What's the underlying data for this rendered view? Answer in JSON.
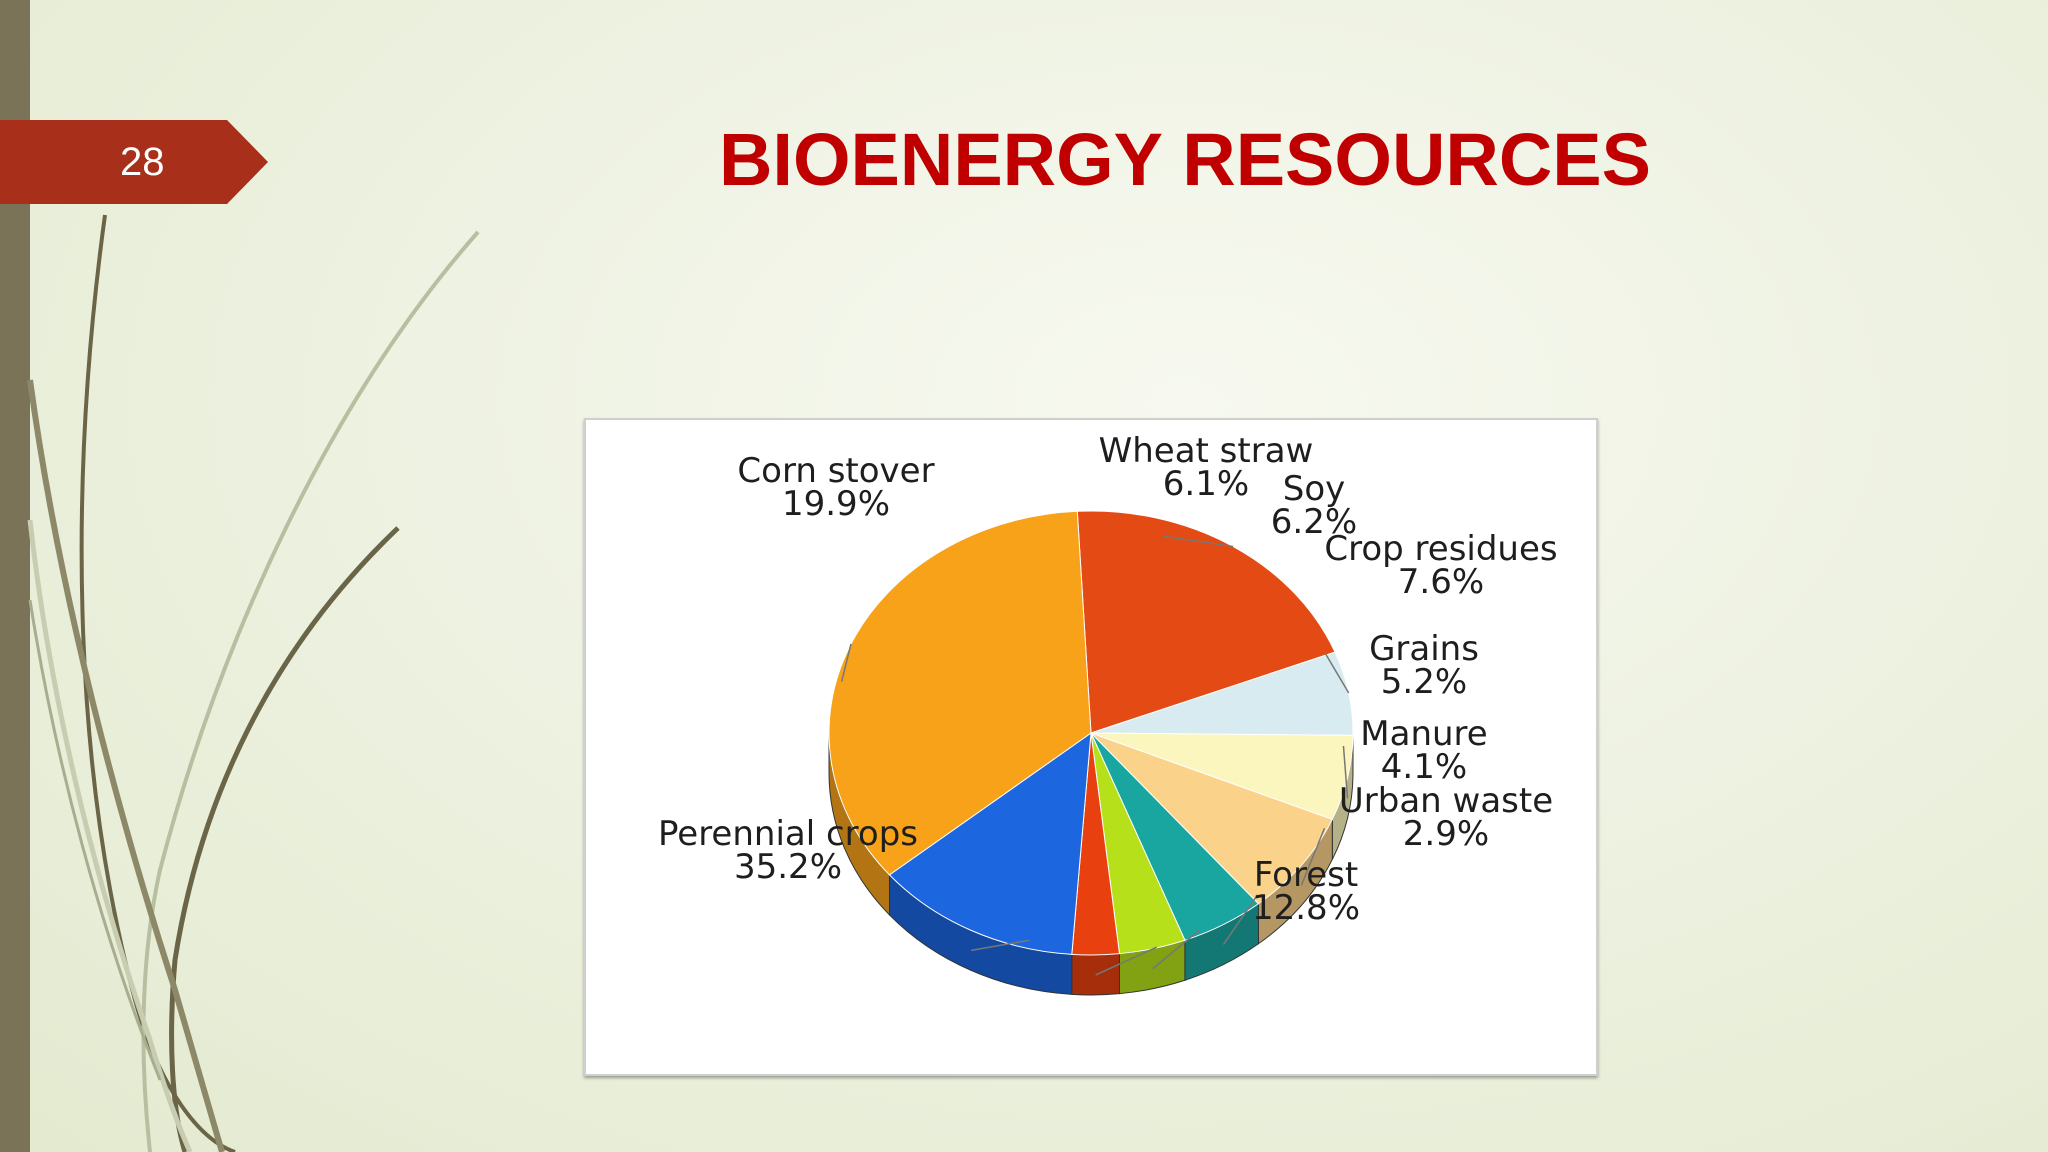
{
  "slide": {
    "number": "28",
    "title": "BIOENERGY RESOURCES"
  },
  "colors": {
    "title": "#c00000",
    "slide_tab": "#a82f1a",
    "left_bar": "#7a7357"
  },
  "chart_data": {
    "type": "pie",
    "style": "3d",
    "title": "",
    "slices": [
      {
        "label": "Corn stover",
        "value": 19.9,
        "display": "19.9%",
        "color": "#e34a14"
      },
      {
        "label": "Wheat straw",
        "value": 6.1,
        "display": "6.1%",
        "color": "#d7ebf0"
      },
      {
        "label": "Soy",
        "value": 6.2,
        "display": "6.2%",
        "color": "#fbf6be"
      },
      {
        "label": "Crop residues",
        "value": 7.6,
        "display": "7.6%",
        "color": "#fbd28a"
      },
      {
        "label": "Grains",
        "value": 5.2,
        "display": "5.2%",
        "color": "#1aa6a0"
      },
      {
        "label": "Manure",
        "value": 4.1,
        "display": "4.1%",
        "color": "#b5e01a"
      },
      {
        "label": "Urban waste",
        "value": 2.9,
        "display": "2.9%",
        "color": "#e8400f"
      },
      {
        "label": "Forest",
        "value": 12.8,
        "display": "12.8%",
        "color": "#1c66e0"
      },
      {
        "label": "Perennial crops",
        "value": 35.2,
        "display": "35.2%",
        "color": "#f8a21a"
      }
    ],
    "legend": "none"
  }
}
